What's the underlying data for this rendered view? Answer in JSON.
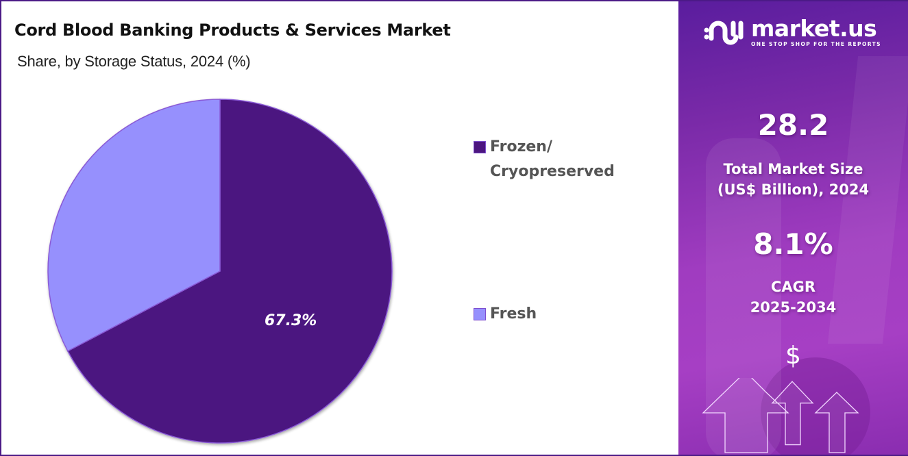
{
  "header": {
    "title": "Cord Blood Banking Products & Services Market",
    "subtitle": "Share, by Storage Status, 2024 (%)"
  },
  "chart_data": {
    "type": "pie",
    "title": "Cord Blood Banking Products & Services Market",
    "subtitle": "Share, by Storage Status, 2024 (%)",
    "categories": [
      "Frozen/ Cryopreserved",
      "Fresh"
    ],
    "values": [
      67.3,
      32.7
    ],
    "colors": [
      "#4c1680",
      "#9690fd"
    ],
    "data_labels": [
      "67.3%",
      ""
    ],
    "start_angle_deg": 0,
    "direction": "clockwise",
    "legend_position": "right"
  },
  "pie": {
    "label": "67.3%"
  },
  "legend": {
    "items": [
      {
        "line1": "Frozen/",
        "line2": "Cryopreserved",
        "color": "#4c1680"
      },
      {
        "line1": "Fresh",
        "line2": "",
        "color": "#9690fd"
      }
    ]
  },
  "brand": {
    "name": "market.us",
    "tagline": "ONE STOP SHOP FOR THE REPORTS",
    "logo_icon": "market-us-logo-icon"
  },
  "stats": {
    "market_size_value": "28.2",
    "market_size_label_line1": "Total Market Size",
    "market_size_label_line2": "(US$ Billion), 2024",
    "cagr_value": "8.1%",
    "cagr_label_line1": "CAGR",
    "cagr_label_line2": "2025-2034"
  },
  "decor": {
    "currency_symbol": "$",
    "growth_icon": "up-arrows-icon"
  }
}
